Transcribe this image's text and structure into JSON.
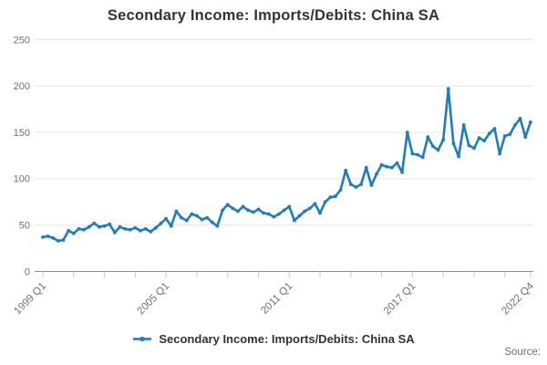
{
  "page": {
    "title": "Secondary Income: Imports/Debits: China SA",
    "source_label": "Source:"
  },
  "colors": {
    "series": "#1d7dbf",
    "grid": "#e6e6e6",
    "axis_line": "#8c8c8c",
    "tick": "#c2c9d6",
    "muted_text": "#707070",
    "title_text": "#333333",
    "legend_text": "#333333"
  },
  "legend": {
    "items": [
      {
        "label": "Secondary Income: Imports/Debits: China SA",
        "marker": "line-dot",
        "color": "#1d7dbf"
      }
    ]
  },
  "chart_data": {
    "type": "line",
    "title": "Secondary Income: Imports/Debits: China SA",
    "xlabel": "",
    "ylabel": "",
    "x_frequency": "quarterly",
    "x_range": [
      "1999 Q1",
      "2022 Q4"
    ],
    "ylim": [
      0,
      250
    ],
    "y_ticks": [
      0,
      50,
      100,
      150,
      200,
      250
    ],
    "grid": "horizontal",
    "legend_position": "bottom",
    "x_tick_indices": [
      0,
      6,
      12,
      18,
      24,
      30,
      36,
      42,
      48,
      54,
      60,
      66,
      72,
      78,
      84,
      90,
      95
    ],
    "x_tick_labels": [
      {
        "index": 0,
        "label": "1999 Q1"
      },
      {
        "index": 24,
        "label": "2005 Q1"
      },
      {
        "index": 48,
        "label": "2011 Q1"
      },
      {
        "index": 72,
        "label": "2017 Q1"
      },
      {
        "index": 95,
        "label": "2022 Q4"
      }
    ],
    "series": [
      {
        "name": "Secondary Income: Imports/Debits: China SA",
        "color": "#1d7dbf",
        "start": "1999 Q1",
        "values": [
          37,
          38,
          36,
          33,
          34,
          44,
          41,
          46,
          45,
          48,
          52,
          48,
          49,
          51,
          42,
          48,
          46,
          45,
          47,
          44,
          46,
          43,
          47,
          52,
          57,
          49,
          65,
          58,
          55,
          62,
          60,
          56,
          58,
          53,
          49,
          66,
          72,
          68,
          65,
          70,
          66,
          64,
          67,
          63,
          62,
          59,
          62,
          66,
          70,
          55,
          60,
          65,
          68,
          73,
          63,
          75,
          80,
          81,
          88,
          109,
          94,
          91,
          94,
          112,
          93,
          105,
          115,
          113,
          112,
          117,
          107,
          150,
          127,
          126,
          123,
          145,
          135,
          131,
          142,
          197,
          138,
          124,
          158,
          136,
          133,
          144,
          141,
          149,
          154,
          127,
          146,
          148,
          158,
          165,
          145,
          161
        ]
      }
    ]
  }
}
